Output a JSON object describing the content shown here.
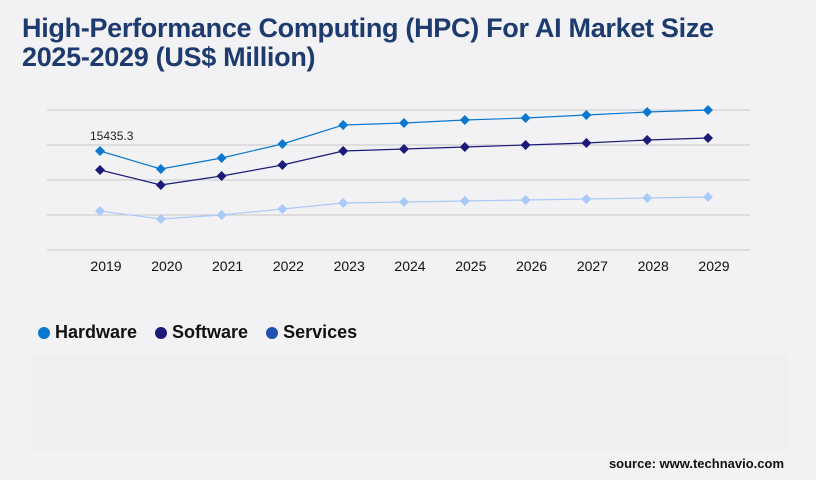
{
  "title": "High-Performance Computing (HPC) For AI Market Size 2025-2029 (US$ Million)",
  "source": "source: www.technavio.com",
  "chart_data": {
    "type": "line",
    "title": "High-Performance Computing (HPC) For AI Market Size 2025-2029 (US$ Million)",
    "categories": [
      "2019",
      "2020",
      "2021",
      "2022",
      "2023",
      "2024",
      "2025",
      "2026",
      "2027",
      "2028",
      "2029"
    ],
    "ylim": [
      0,
      21827
    ],
    "grid": true,
    "legend": "bottom-left",
    "annotations": [
      {
        "category": "2019",
        "series": "Hardware",
        "text": "15435.3"
      }
    ],
    "series": [
      {
        "name": "Hardware",
        "color": "#0a78d0",
        "values": [
          15435.3,
          12629,
          14344,
          16526,
          19488,
          19800,
          20268,
          20580,
          21048,
          21515,
          21827
        ]
      },
      {
        "name": "Software",
        "color": "#1b1a78",
        "values": [
          12472,
          10134,
          11537,
          13252,
          15435,
          15746,
          16058,
          16370,
          16682,
          17149,
          17461
        ]
      },
      {
        "name": "Services",
        "color": "#a9c9f7",
        "legend_color": "#1f4fb0",
        "values": [
          6080,
          4832,
          5456,
          6392,
          7327,
          7483,
          7639,
          7795,
          7951,
          8107,
          8263
        ]
      }
    ]
  }
}
